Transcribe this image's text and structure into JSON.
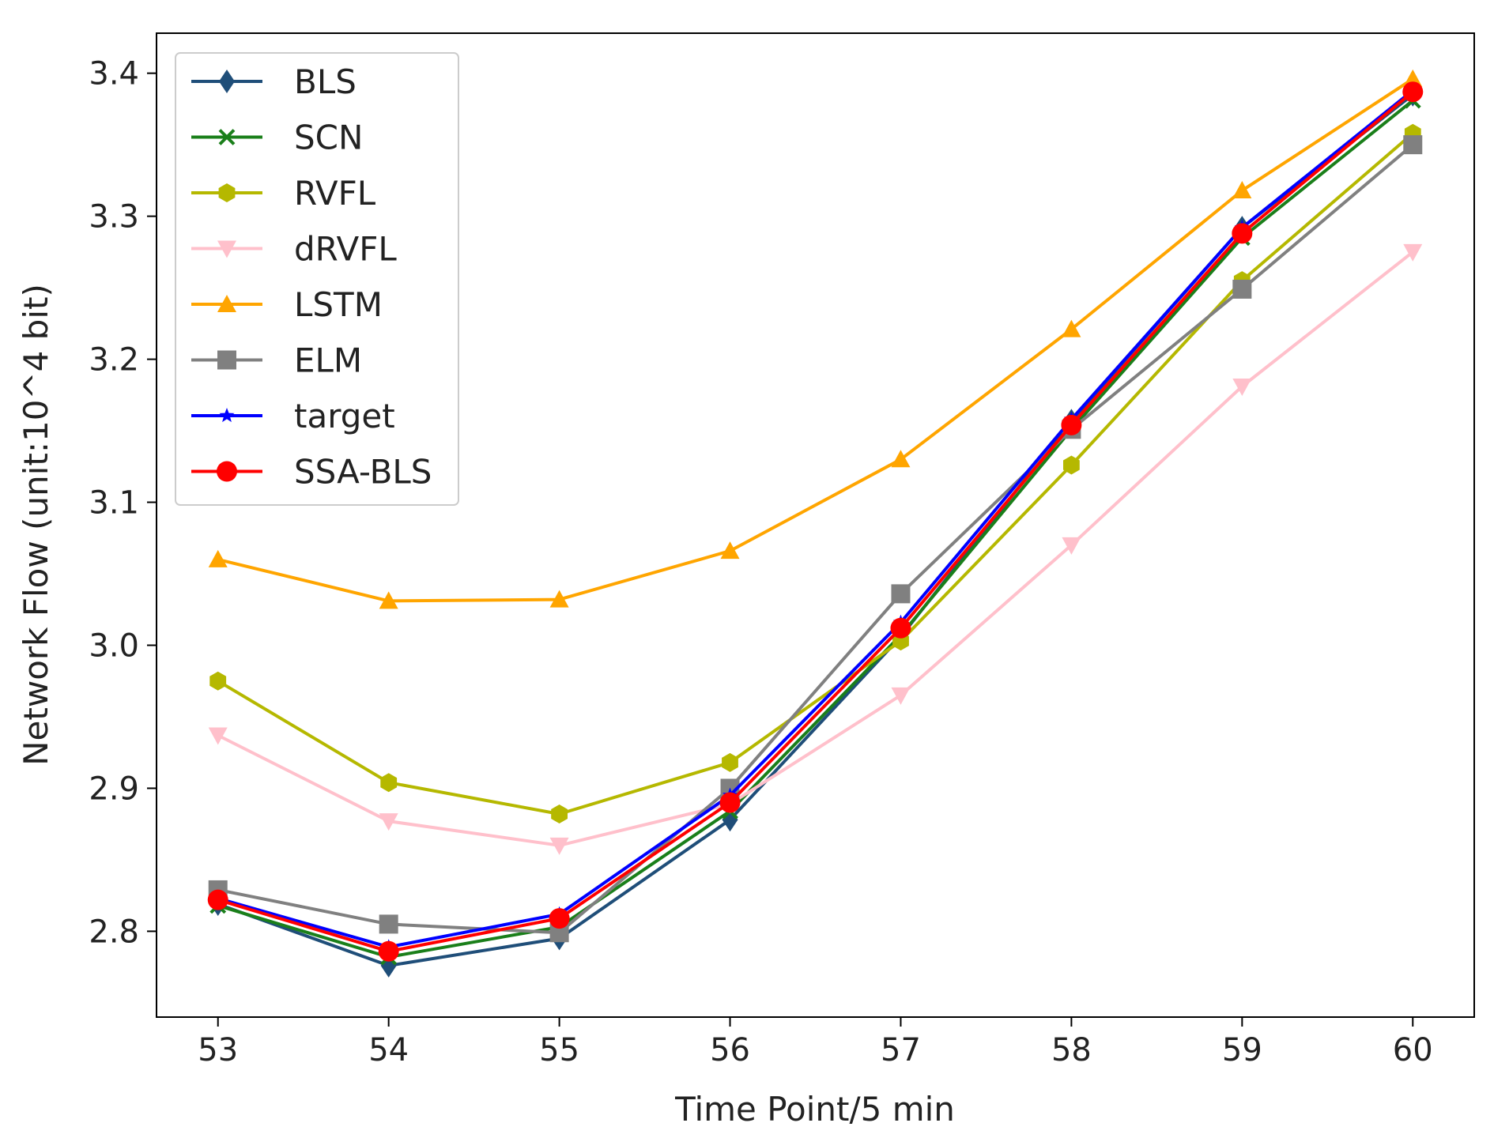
{
  "chart_data": {
    "type": "line",
    "title": "",
    "xlabel": "Time Point/5 min",
    "ylabel": "Network Flow (unit:10^4 bit)",
    "x": [
      53,
      54,
      55,
      56,
      57,
      58,
      59,
      60
    ],
    "xticks": [
      "53",
      "54",
      "55",
      "56",
      "57",
      "58",
      "59",
      "60"
    ],
    "yticks": [
      "2.8",
      "2.9",
      "3.0",
      "3.1",
      "3.2",
      "3.3",
      "3.4"
    ],
    "ytick_values": [
      2.8,
      2.9,
      3.0,
      3.1,
      3.2,
      3.3,
      3.4
    ],
    "xlim": [
      52.64,
      60.36
    ],
    "ylim": [
      2.74,
      3.428
    ],
    "grid": false,
    "legend_position": "upper-left",
    "series": [
      {
        "name": "BLS",
        "color": "#1f4e79",
        "marker": "diamond",
        "values": [
          2.819,
          2.776,
          2.795,
          2.878,
          3.006,
          3.157,
          3.292,
          3.385
        ]
      },
      {
        "name": "SCN",
        "color": "#1a7f1a",
        "marker": "x",
        "values": [
          2.818,
          2.782,
          2.803,
          2.884,
          3.007,
          3.151,
          3.285,
          3.381
        ]
      },
      {
        "name": "RVFL",
        "color": "#b5b800",
        "marker": "hexagon",
        "values": [
          2.975,
          2.904,
          2.882,
          2.918,
          3.003,
          3.126,
          3.255,
          3.358
        ]
      },
      {
        "name": "dRVFL",
        "color": "#ffc0cb",
        "marker": "triangle-down",
        "values": [
          2.937,
          2.877,
          2.86,
          2.889,
          2.965,
          3.07,
          3.181,
          3.275
        ]
      },
      {
        "name": "LSTM",
        "color": "#ffa500",
        "marker": "triangle-up",
        "values": [
          3.06,
          3.031,
          3.032,
          3.066,
          3.13,
          3.221,
          3.318,
          3.396
        ]
      },
      {
        "name": "ELM",
        "color": "#808080",
        "marker": "square",
        "values": [
          2.829,
          2.805,
          2.799,
          2.9,
          3.036,
          3.151,
          3.249,
          3.35
        ]
      },
      {
        "name": "target",
        "color": "#0000ff",
        "marker": "star",
        "values": [
          2.823,
          2.789,
          2.812,
          2.895,
          3.016,
          3.158,
          3.292,
          3.388
        ]
      },
      {
        "name": "SSA-BLS",
        "color": "#ff0000",
        "marker": "circle",
        "values": [
          2.822,
          2.786,
          2.809,
          2.89,
          3.012,
          3.154,
          3.288,
          3.387
        ]
      }
    ]
  }
}
